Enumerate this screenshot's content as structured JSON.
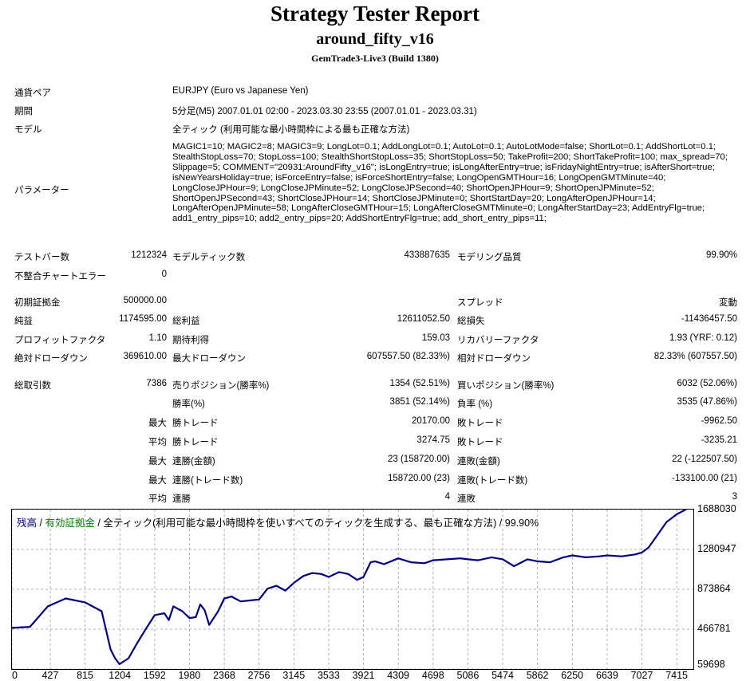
{
  "header": {
    "title": "Strategy Tester Report",
    "subtitle": "around_fifty_v16",
    "build": "GemTrade3-Live3 (Build 1380)"
  },
  "info": {
    "pair_label": "通貨ペア",
    "pair_value": "EURJPY (Euro vs Japanese Yen)",
    "period_label": "期間",
    "period_value": "5分足(M5) 2007.01.01 02:00 - 2023.03.30 23:55 (2007.01.01 - 2023.03.31)",
    "model_label": "モデル",
    "model_value": "全ティック (利用可能な最小時間枠による最も正確な方法)",
    "params_label": "パラメーター",
    "params_value": "MAGIC1=10; MAGIC2=8; MAGIC3=9; LongLot=0.1; AddLongLot=0.1; AutoLot=0.1; AutoLotMode=false; ShortLot=0.1; AddShortLot=0.1; StealthStopLoss=70; StopLoss=100; StealthShortStopLoss=35; ShortStopLoss=50; TakeProfit=200; ShortTakeProfit=100; max_spread=70; Slippage=5; COMMENT=\"20931:AroundFifty_v16\"; isLongEntry=true; isLongAfterEntry=true; isFridayNightEntry=true; isAfterShort=true; isNewYearsHoliday=true; isForceEntry=false; isForceShortEntry=false; LongOpenGMTHour=16; LongOpenGMTMinute=40; LongCloseJPHour=9; LongCloseJPMinute=52; LongCloseJPSecond=40; ShortOpenJPHour=9; ShortOpenJPMinute=52; ShortOpenJPSecond=43; ShortCloseJPHour=14; ShortCloseJPMinute=0; ShortStartDay=20; LongAfterOpenJPHour=14; LongAfterOpenJPMinute=58; LongAfterCloseGMTHour=15; LongAfterCloseGMTMinute=0; LongAfterStartDay=23; AddEntryFlg=true; add1_entry_pips=10; add2_entry_pips=20; AddShortEntryFlg=true; add_short_entry_pips=11;"
  },
  "stats": {
    "bars_label": "テストバー数",
    "bars_value": "1212324",
    "ticks_label": "モデルティック数",
    "ticks_value": "433887635",
    "quality_label": "モデリング品質",
    "quality_value": "99.90%",
    "mismatch_label": "不整合チャートエラー",
    "mismatch_value": "0",
    "deposit_label": "初期証拠金",
    "deposit_value": "500000.00",
    "spread_label": "スプレッド",
    "spread_value": "変動",
    "net_label": "純益",
    "net_value": "1174595.00",
    "gross_profit_label": "総利益",
    "gross_profit_value": "12611052.50",
    "gross_loss_label": "総損失",
    "gross_loss_value": "-11436457.50",
    "pf_label": "プロフィットファクタ",
    "pf_value": "1.10",
    "expected_label": "期待利得",
    "expected_value": "159.03",
    "recovery_label": "リカバリーファクタ",
    "recovery_value": "1.93 (YRF: 0.12)",
    "abs_dd_label": "絶対ドローダウン",
    "abs_dd_value": "369610.00",
    "max_dd_label": "最大ドローダウン",
    "max_dd_value": "607557.50 (82.33%)",
    "rel_dd_label": "相対ドローダウン",
    "rel_dd_value": "82.33% (607557.50)"
  },
  "trades": {
    "total_label": "総取引数",
    "total_value": "7386",
    "short_label": "売りポジション(勝率%)",
    "short_value": "1354 (52.51%)",
    "long_label": "買いポジション(勝率%)",
    "long_value": "6032 (52.06%)",
    "winrate_label": "勝率(%)",
    "winrate_value": "3851 (52.14%)",
    "lossrate_label": "負率 (%)",
    "lossrate_value": "3535 (47.86%)",
    "max_label": "最大",
    "avg_label": "平均",
    "win_trade_label": "勝トレード",
    "loss_trade_label": "敗トレード",
    "max_win_value": "20170.00",
    "max_loss_value": "-9962.50",
    "avg_win_value": "3274.75",
    "avg_loss_value": "-3235.21",
    "consec_win_money_label": "連勝(金額)",
    "consec_win_money_value": "23 (158720.00)",
    "consec_loss_money_label": "連敗(金額)",
    "consec_loss_money_value": "22 (-122507.50)",
    "consec_win_count_label": "連勝(トレード数)",
    "consec_win_count_value": "158720.00 (23)",
    "consec_loss_count_label": "連敗(トレード数)",
    "consec_loss_count_value": "-133100.00 (21)",
    "avg_consec_win_label": "連勝",
    "avg_consec_win_value": "4",
    "avg_consec_loss_label": "連敗",
    "avg_consec_loss_value": "3"
  },
  "chart_data": {
    "type": "line",
    "legend": {
      "balance": "残高",
      "sep1": " / ",
      "equity": "有効証拠金",
      "rest": " / 全ティック(利用可能な最小時間枠を使いすべてのティックを生成する、最も正確な方法) / 99.90%",
      "balance_color": "#000080",
      "equity_color": "#008000"
    },
    "line_color": "#000080",
    "grid": true,
    "x_ticks": [
      "0",
      "427",
      "815",
      "1204",
      "1592",
      "1980",
      "2368",
      "2756",
      "3145",
      "3533",
      "3921",
      "4309",
      "4698",
      "5086",
      "5474",
      "5862",
      "6250",
      "6639",
      "7027",
      "7415"
    ],
    "y_ticks": [
      "1688030",
      "1280947",
      "873864",
      "466781",
      "59698"
    ],
    "xlim": [
      0,
      7600
    ],
    "ylim": [
      59698,
      1688030
    ],
    "series": [
      {
        "x": [
          0,
          200,
          400,
          600,
          815,
          1000,
          1100,
          1150,
          1200,
          1300,
          1400,
          1500,
          1592,
          1700,
          1750,
          1800,
          1900,
          1980,
          2050,
          2100,
          2150,
          2200,
          2300,
          2368,
          2450,
          2550,
          2650,
          2756,
          2850,
          2950,
          3050,
          3145,
          3250,
          3350,
          3450,
          3533,
          3650,
          3750,
          3850,
          3921,
          4000,
          4050,
          4150,
          4309,
          4450,
          4600,
          4698,
          4850,
          5000,
          5086,
          5200,
          5350,
          5474,
          5600,
          5750,
          5862,
          6000,
          6150,
          6250,
          6400,
          6550,
          6639,
          6800,
          6950,
          7027,
          7100,
          7200,
          7300,
          7415,
          7520
        ],
        "y": [
          480000,
          490000,
          700000,
          780000,
          740000,
          650000,
          260000,
          170000,
          110000,
          170000,
          330000,
          480000,
          610000,
          630000,
          560000,
          700000,
          650000,
          580000,
          590000,
          720000,
          660000,
          510000,
          650000,
          780000,
          800000,
          750000,
          760000,
          770000,
          880000,
          910000,
          860000,
          940000,
          1010000,
          1040000,
          1030000,
          1000000,
          1050000,
          1030000,
          970000,
          1000000,
          1150000,
          1160000,
          1130000,
          1190000,
          1150000,
          1140000,
          1170000,
          1180000,
          1190000,
          1180000,
          1170000,
          1200000,
          1180000,
          1110000,
          1180000,
          1160000,
          1150000,
          1200000,
          1220000,
          1200000,
          1210000,
          1220000,
          1210000,
          1230000,
          1250000,
          1300000,
          1430000,
          1560000,
          1640000,
          1690000
        ]
      }
    ]
  }
}
